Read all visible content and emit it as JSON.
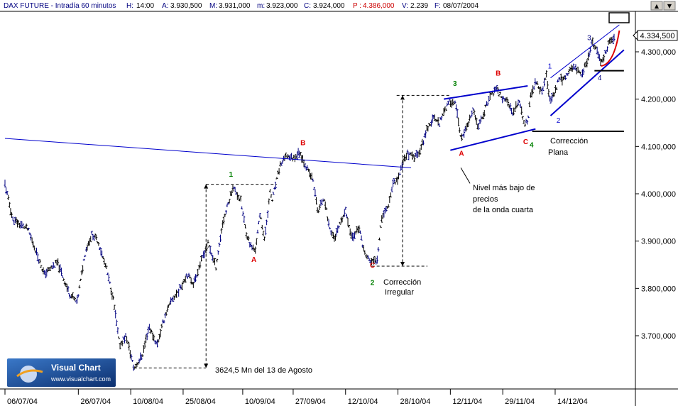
{
  "header": {
    "symbol": "DAX FUTURE - Intradía 60 minutos",
    "h_label": "H:",
    "h_value": "14:00",
    "a_label": "A:",
    "a_value": "3.930,500",
    "m_label": "M:",
    "m_value": "3.931,000",
    "mn_label": "m:",
    "mn_value": "3.923,000",
    "c_label": "C:",
    "c_value": "3.924,000",
    "p_label": "P :",
    "p_value": "4.386,000",
    "v_label": "V:",
    "v_value": "2.239",
    "f_label": "F:",
    "f_value": "08/07/2004"
  },
  "window_buttons": [
    "▲",
    "▼"
  ],
  "price_tag": "4.334,500",
  "logo": {
    "title": "Visual Chart",
    "url": "www.visualchart.com"
  },
  "annotations": {
    "min_label": "3624,5  Mn del 13 de Agosto",
    "irregular": [
      "Corrección",
      "Irregular"
    ],
    "flat": [
      "Corrección",
      "Plana"
    ],
    "lowest": [
      "Nivel  más bajo de",
      "precios",
      "de la onda cuarta"
    ]
  },
  "wave_labels": [
    {
      "text": "1",
      "color": "#008000",
      "bold": true,
      "t": 34.5,
      "p": 4036
    },
    {
      "text": "A",
      "color": "#dd0000",
      "bold": true,
      "t": 38.0,
      "p": 3856
    },
    {
      "text": "B",
      "color": "#dd0000",
      "bold": true,
      "t": 45.5,
      "p": 4103
    },
    {
      "text": "C",
      "color": "#dd0000",
      "bold": true,
      "t": 56.1,
      "p": 3844
    },
    {
      "text": "2",
      "color": "#008000",
      "bold": true,
      "t": 56.1,
      "p": 3807
    },
    {
      "text": "3",
      "color": "#008000",
      "bold": true,
      "t": 68.7,
      "p": 4228
    },
    {
      "text": "A",
      "color": "#dd0000",
      "bold": true,
      "t": 69.7,
      "p": 4080
    },
    {
      "text": "B",
      "color": "#dd0000",
      "bold": true,
      "t": 75.3,
      "p": 4250
    },
    {
      "text": "C",
      "color": "#dd0000",
      "bold": true,
      "t": 79.5,
      "p": 4105
    },
    {
      "text": "4",
      "color": "#008000",
      "bold": true,
      "t": 80.4,
      "p": 4098
    },
    {
      "text": "1",
      "color": "#0000cc",
      "bold": false,
      "t": 83.2,
      "p": 4265
    },
    {
      "text": "2",
      "color": "#0000cc",
      "bold": false,
      "t": 84.5,
      "p": 4150
    },
    {
      "text": "3",
      "color": "#000080",
      "bold": false,
      "t": 89.2,
      "p": 4325
    },
    {
      "text": "4",
      "color": "#000080",
      "bold": false,
      "t": 90.8,
      "p": 4240
    }
  ],
  "chart_data": {
    "type": "bar",
    "style": "OHLC bars, 60-minute",
    "title": "DAX FUTURE - Intradía 60 minutos",
    "y_axis_position": "right",
    "ylim": [
      3617,
      4367
    ],
    "y_ticks": [
      "4.300,000",
      "4.200,000",
      "4.100,000",
      "4.000,000",
      "3.900,000",
      "3.800,000",
      "3.700,000"
    ],
    "y_tick_values": [
      4300,
      4200,
      4100,
      4000,
      3900,
      3800,
      3700
    ],
    "x_ticks": [
      "06/07/04",
      "26/07/04",
      "10/08/04",
      "25/08/04",
      "10/09/04",
      "27/09/04",
      "12/10/04",
      "28/10/04",
      "12/11/04",
      "29/11/04",
      "14/12/04"
    ],
    "x_tick_positions": [
      0,
      11.2,
      19.2,
      27.2,
      36.3,
      44.0,
      52.0,
      60.0,
      68.0,
      76.0,
      84.0
    ],
    "last_close": 4334.5,
    "key_points": [
      {
        "t": 0.0,
        "p": 4020
      },
      {
        "t": 1.2,
        "p": 3945
      },
      {
        "t": 3.5,
        "p": 3925
      },
      {
        "t": 6.0,
        "p": 3830
      },
      {
        "t": 8.0,
        "p": 3855
      },
      {
        "t": 9.8,
        "p": 3790
      },
      {
        "t": 11.0,
        "p": 3770
      },
      {
        "t": 12.3,
        "p": 3880
      },
      {
        "t": 13.3,
        "p": 3915
      },
      {
        "t": 14.2,
        "p": 3900
      },
      {
        "t": 15.5,
        "p": 3840
      },
      {
        "t": 16.5,
        "p": 3780
      },
      {
        "t": 17.5,
        "p": 3680
      },
      {
        "t": 18.5,
        "p": 3700
      },
      {
        "t": 19.7,
        "p": 3630
      },
      {
        "t": 21.0,
        "p": 3660
      },
      {
        "t": 22.0,
        "p": 3720
      },
      {
        "t": 23.2,
        "p": 3680
      },
      {
        "t": 24.5,
        "p": 3745
      },
      {
        "t": 25.5,
        "p": 3775
      },
      {
        "t": 26.5,
        "p": 3795
      },
      {
        "t": 27.8,
        "p": 3830
      },
      {
        "t": 28.8,
        "p": 3810
      },
      {
        "t": 30.0,
        "p": 3860
      },
      {
        "t": 31.0,
        "p": 3895
      },
      {
        "t": 32.2,
        "p": 3845
      },
      {
        "t": 33.2,
        "p": 3935
      },
      {
        "t": 34.0,
        "p": 3975
      },
      {
        "t": 34.8,
        "p": 4015
      },
      {
        "t": 36.0,
        "p": 3985
      },
      {
        "t": 36.8,
        "p": 3920
      },
      {
        "t": 37.5,
        "p": 3890
      },
      {
        "t": 38.2,
        "p": 3880
      },
      {
        "t": 39.0,
        "p": 3960
      },
      {
        "t": 39.6,
        "p": 3900
      },
      {
        "t": 40.5,
        "p": 4005
      },
      {
        "t": 40.8,
        "p": 3985
      },
      {
        "t": 42.0,
        "p": 4060
      },
      {
        "t": 43.0,
        "p": 4080
      },
      {
        "t": 44.0,
        "p": 4075
      },
      {
        "t": 45.0,
        "p": 4088
      },
      {
        "t": 46.2,
        "p": 4050
      },
      {
        "t": 47.0,
        "p": 4030
      },
      {
        "t": 47.8,
        "p": 3960
      },
      {
        "t": 48.7,
        "p": 3995
      },
      {
        "t": 49.5,
        "p": 3930
      },
      {
        "t": 50.3,
        "p": 3905
      },
      {
        "t": 51.2,
        "p": 3935
      },
      {
        "t": 52.0,
        "p": 3965
      },
      {
        "t": 53.0,
        "p": 3905
      },
      {
        "t": 54.0,
        "p": 3930
      },
      {
        "t": 55.0,
        "p": 3870
      },
      {
        "t": 56.0,
        "p": 3855
      },
      {
        "t": 56.8,
        "p": 3860
      },
      {
        "t": 57.5,
        "p": 3950
      },
      {
        "t": 58.5,
        "p": 3975
      },
      {
        "t": 59.3,
        "p": 4025
      },
      {
        "t": 60.0,
        "p": 4030
      },
      {
        "t": 60.8,
        "p": 4070
      },
      {
        "t": 61.5,
        "p": 4085
      },
      {
        "t": 62.5,
        "p": 4075
      },
      {
        "t": 63.5,
        "p": 4095
      },
      {
        "t": 64.5,
        "p": 4140
      },
      {
        "t": 65.5,
        "p": 4160
      },
      {
        "t": 66.3,
        "p": 4150
      },
      {
        "t": 67.0,
        "p": 4175
      },
      {
        "t": 68.0,
        "p": 4195
      },
      {
        "t": 68.8,
        "p": 4190
      },
      {
        "t": 69.6,
        "p": 4115
      },
      {
        "t": 70.5,
        "p": 4140
      },
      {
        "t": 71.5,
        "p": 4175
      },
      {
        "t": 72.3,
        "p": 4140
      },
      {
        "t": 73.2,
        "p": 4175
      },
      {
        "t": 74.0,
        "p": 4205
      },
      {
        "t": 75.0,
        "p": 4220
      },
      {
        "t": 75.8,
        "p": 4205
      },
      {
        "t": 76.8,
        "p": 4195
      },
      {
        "t": 77.5,
        "p": 4165
      },
      {
        "t": 78.5,
        "p": 4200
      },
      {
        "t": 79.3,
        "p": 4145
      },
      {
        "t": 79.8,
        "p": 4155
      },
      {
        "t": 80.3,
        "p": 4210
      },
      {
        "t": 81.0,
        "p": 4235
      },
      {
        "t": 82.0,
        "p": 4215
      },
      {
        "t": 82.6,
        "p": 4255
      },
      {
        "t": 83.2,
        "p": 4195
      },
      {
        "t": 84.0,
        "p": 4215
      },
      {
        "t": 84.5,
        "p": 4245
      },
      {
        "t": 85.3,
        "p": 4240
      },
      {
        "t": 86.2,
        "p": 4260
      },
      {
        "t": 87.0,
        "p": 4270
      },
      {
        "t": 88.0,
        "p": 4250
      },
      {
        "t": 89.0,
        "p": 4285
      },
      {
        "t": 89.6,
        "p": 4320
      },
      {
        "t": 90.3,
        "p": 4305
      },
      {
        "t": 91.0,
        "p": 4275
      },
      {
        "t": 91.8,
        "p": 4305
      },
      {
        "t": 92.5,
        "p": 4325
      },
      {
        "t": 93.0,
        "p": 4330
      }
    ],
    "drawings": {
      "blue_trendlines": [
        {
          "from": {
            "t": 0.0,
            "p": 4117
          },
          "to": {
            "t": 62.0,
            "p": 4055
          },
          "width": 1
        },
        {
          "from": {
            "t": 67.0,
            "p": 4200
          },
          "to": {
            "t": 79.8,
            "p": 4228
          },
          "width": 2
        },
        {
          "from": {
            "t": 68.0,
            "p": 4092
          },
          "to": {
            "t": 81.0,
            "p": 4137
          },
          "width": 2
        },
        {
          "from": {
            "t": 83.3,
            "p": 4165
          },
          "to": {
            "t": 94.5,
            "p": 4304
          },
          "width": 2
        },
        {
          "from": {
            "t": 83.3,
            "p": 4245
          },
          "to": {
            "t": 93.8,
            "p": 4357
          },
          "width": 1
        }
      ],
      "red_curve": {
        "from": {
          "t": 91.0,
          "p": 4270
        },
        "to": {
          "t": 93.8,
          "p": 4345
        }
      },
      "black_hlines": [
        {
          "from": {
            "t": 90.0,
            "p": 4260
          },
          "to": {
            "t": 94.5,
            "p": 4260
          }
        },
        {
          "from": {
            "t": 80.5,
            "p": 4132
          },
          "to": {
            "t": 94.5,
            "p": 4132
          }
        }
      ],
      "dashed_brackets": [
        {
          "h1": {
            "t1": 30.7,
            "t2": 41.5,
            "p": 4020
          },
          "h2": {
            "t1": 19.7,
            "t2": 30.7,
            "p": 3632
          },
          "v": {
            "t": 30.7,
            "p1": 4020,
            "p2": 3632
          }
        },
        {
          "h1": {
            "t1": 59.8,
            "t2": 68.0,
            "p": 4208
          },
          "h2": {
            "t1": 56.0,
            "t2": 64.5,
            "p": 3847
          },
          "v": {
            "t": 60.7,
            "p1": 4208,
            "p2": 3847
          }
        }
      ],
      "pointer_line": {
        "from": {
          "t": 71.0,
          "p": 4022
        },
        "to": {
          "t": 69.6,
          "p": 4055
        }
      }
    }
  }
}
